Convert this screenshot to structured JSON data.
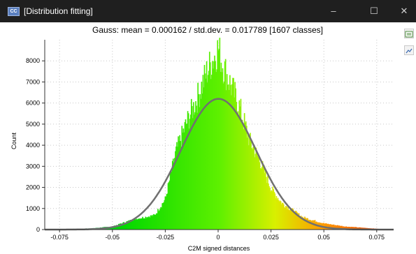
{
  "window": {
    "title": "[Distribution fitting]",
    "app_icon": "cloudcompare-app-icon",
    "controls": {
      "minimize": "–",
      "maximize": "☐",
      "close": "✕"
    }
  },
  "side_toolbar": [
    {
      "icon": "export-csv-icon"
    },
    {
      "icon": "export-image-icon"
    }
  ],
  "chart_data": {
    "type": "bar",
    "title": "Gauss: mean = 0.000162 / std.dev. = 0.017789 [1607 classes]",
    "xlabel": "C2M signed distances",
    "ylabel": "Count",
    "xlim": [
      -0.082,
      0.083
    ],
    "ylim": [
      0,
      9000
    ],
    "grid": true,
    "x_ticks": [
      -0.075,
      -0.05,
      -0.025,
      0,
      0.025,
      0.05,
      0.075
    ],
    "x_tick_labels": [
      "-0.075",
      "-0.05",
      "-0.025",
      "0",
      "0.025",
      "0.05",
      "0.075"
    ],
    "y_ticks": [
      0,
      1000,
      2000,
      3000,
      4000,
      5000,
      6000,
      7000,
      8000
    ],
    "y_tick_labels": [
      "0",
      "1000",
      "2000",
      "3000",
      "4000",
      "5000",
      "6000",
      "7000",
      "8000"
    ],
    "histogram_envelope": {
      "x": [
        -0.08,
        -0.06,
        -0.05,
        -0.04,
        -0.03,
        -0.025,
        -0.02,
        -0.015,
        -0.01,
        -0.005,
        0,
        0.002,
        0.005,
        0.01,
        0.015,
        0.02,
        0.025,
        0.03,
        0.04,
        0.05,
        0.06,
        0.075,
        0.08
      ],
      "y": [
        0,
        60,
        150,
        500,
        700,
        1500,
        3800,
        5200,
        6400,
        7800,
        8850,
        8100,
        7300,
        6000,
        4300,
        3300,
        2000,
        1300,
        600,
        300,
        150,
        40,
        0
      ]
    },
    "gauss_fit": {
      "mean": 0.000162,
      "std_dev": 0.017789,
      "peak": 6200
    },
    "colormap": [
      "#2a7fd4",
      "#00e000",
      "#66f000",
      "#e5f000",
      "#ff8800",
      "#e03000"
    ]
  }
}
